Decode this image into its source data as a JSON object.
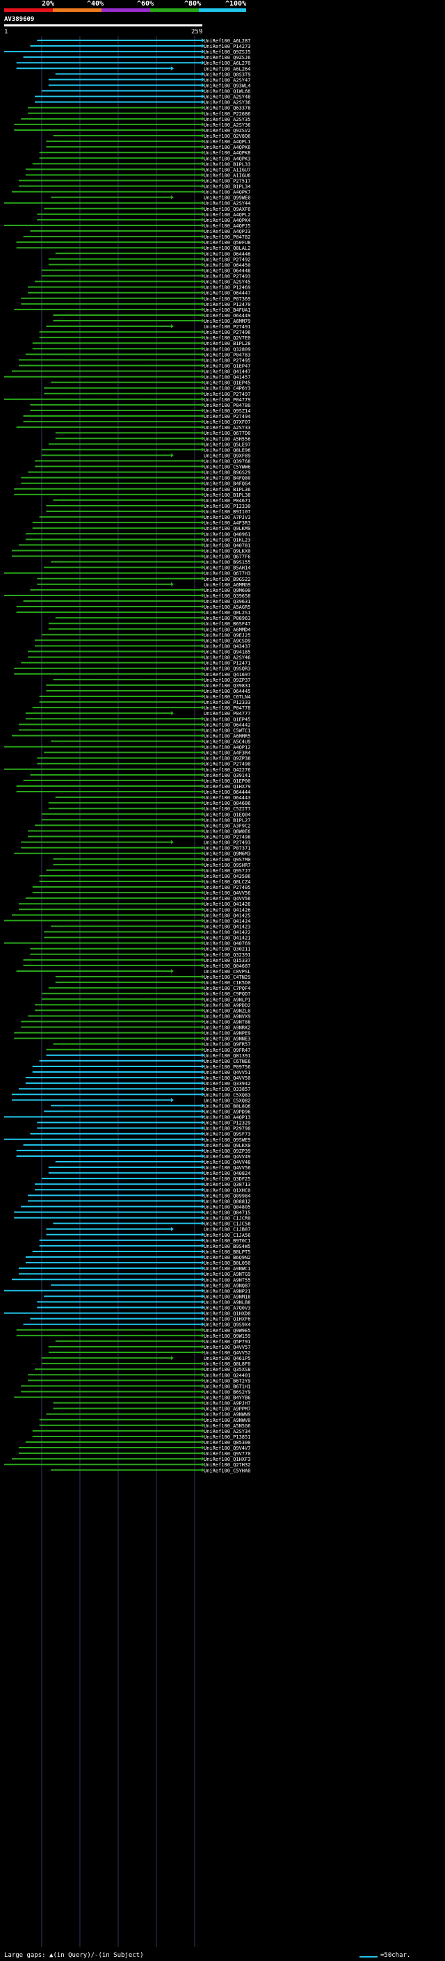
{
  "header": {
    "percent_labels": [
      "20%",
      "^40%",
      "^60%",
      "^80%",
      "^100%"
    ],
    "band_colors": [
      "#e8141c",
      "#f07a1c",
      "#9a2fd0",
      "#2aa81a",
      "#22c8ee"
    ],
    "query_name": "AV389609"
  },
  "chart_data": {
    "type": "alignment-map",
    "title": "AV389609",
    "query_start": 1,
    "query_end": 259,
    "hit_prefix": "UniRef100_",
    "color_scale": [
      {
        "min": 0,
        "max": 20,
        "color": "#e8141c"
      },
      {
        "min": 20,
        "max": 40,
        "color": "#f07a1c"
      },
      {
        "min": 40,
        "max": 60,
        "color": "#9a2fd0"
      },
      {
        "min": 60,
        "max": 80,
        "color": "#2aa81a"
      },
      {
        "min": 80,
        "max": 100,
        "color": "#22c8ee"
      }
    ],
    "hits": [
      "A6L287",
      "P14273",
      "Q9ZSJ5",
      "Q9ZSJ6",
      "A6L270",
      "A6L264",
      "Q0S3T9",
      "A2SY47",
      "Q93WL4",
      "Q1WL66",
      "A2SY48",
      "A2SY36",
      "Q63378",
      "P22686",
      "A2SY35",
      "A2SY36",
      "Q9ZSV2",
      "Q2V8Q6",
      "A4QPL1",
      "A4QPK6",
      "A4QPK8",
      "A4QPK3",
      "B1PL33",
      "A1IGU7",
      "A1IGU6",
      "P27517",
      "B1PL34",
      "A4QPK7",
      "Q99WE0",
      "A2SY44",
      "Q9AXF6",
      "A4QPL2",
      "A4QPK4",
      "A4QPJ5",
      "A4QPJ3",
      "P04782",
      "Q50FU8",
      "Q8LAL2",
      "O64446",
      "P27492",
      "O64450",
      "O64448",
      "P27493",
      "A2SY45",
      "P12469",
      "O64447",
      "P07369",
      "P12470",
      "B4FUA1",
      "O64449",
      "A6MM79",
      "P27491",
      "P27496",
      "Q2V7E0",
      "B1PL28",
      "Q32809",
      "P04783",
      "P27495",
      "Q1EP47",
      "Q41447",
      "Q41457",
      "Q1EP45",
      "C4P6Y3",
      "P27497",
      "P04779",
      "P04780",
      "Q9SZ14",
      "P27494",
      "Q7XF07",
      "A2SY33",
      "Q677D0",
      "A5H556",
      "Q5LE97",
      "Q8LE96",
      "Q9XF89",
      "Q39768",
      "C5YWW6",
      "B9GS29",
      "B4FQ80",
      "B4FQG4",
      "B1PL36",
      "B1PL38",
      "P04671",
      "P12330",
      "B9I107",
      "A7PJV3",
      "A4F3R3",
      "Q9LKM9",
      "Q40961",
      "Q1KL23",
      "Q40781",
      "Q9LKX0",
      "Q677F6",
      "B9S155",
      "B5AH14",
      "Q677H3",
      "B9GS22",
      "A6MMG9",
      "Q9M600",
      "Q39658",
      "Q39631",
      "A5AGR5",
      "Q0L2S1",
      "P08963",
      "B6SF47",
      "A6MMD4",
      "Q9EJ25",
      "A9CSD9",
      "Q43437",
      "Q94185",
      "A2SY46",
      "P12471",
      "Q9SQR3",
      "Q41697",
      "Q9ZP37",
      "Q39831",
      "O64445",
      "C6TLN4",
      "P12333",
      "P04778",
      "P04777",
      "Q1EP45",
      "O64442",
      "C5WTC1",
      "A6MMR5",
      "A5C4U9",
      "A4QP12",
      "A4F3R4",
      "Q9ZP38",
      "P27490",
      "Q42276",
      "Q39141",
      "Q1EP00",
      "Q1HX79",
      "O64444",
      "O64443",
      "Q04686",
      "C5ZIT7",
      "Q1EQ04",
      "B1PL27",
      "A3F9C2",
      "Q8W0E6",
      "P27498",
      "P27493",
      "P07371",
      "Q9M6M3",
      "Q9S7M0",
      "Q9SHR7",
      "Q9S7J7",
      "Q43586",
      "Q8LCZ4",
      "P27405",
      "Q4VV56",
      "Q4VV56",
      "Q41426",
      "Q41426",
      "Q41425",
      "Q41424",
      "Q41423",
      "Q41422",
      "Q41421",
      "Q40769",
      "Q30211",
      "Q32391",
      "Q15337",
      "Q04687",
      "C0VPSL",
      "C4TN29",
      "C1K5D0",
      "C7PQF4",
      "C9PQD7",
      "A9NLP1",
      "A9PDD2",
      "A9NZL0",
      "A9NVX9",
      "A9NT88",
      "A9NRK2",
      "A9NPE9",
      "A9NNE3",
      "Q9FR57",
      "Q9FR47",
      "Q81391",
      "C6TNE6",
      "P09756",
      "Q4VV51",
      "Q4VV50",
      "Q33942",
      "Q33857",
      "C5XQ83",
      "C5XQ82",
      "B8L8Q6",
      "A9PD96",
      "A4QP13",
      "P12329",
      "P29790",
      "Q9SF73",
      "Q9SWE9",
      "Q9LKX0",
      "Q9ZP39",
      "Q4VV49",
      "Q4VV48",
      "Q4VV56",
      "Q40824",
      "Q3DF25",
      "Q38713",
      "Q1XHC0",
      "Q09984",
      "Q08812",
      "Q04805",
      "Q04715",
      "C1JCR0",
      "C1JC58",
      "C1JB87",
      "C1JA56",
      "B9T0C1",
      "B9S4W5",
      "B8LPT5",
      "B6Q9N2",
      "B0L050",
      "A9NWC1",
      "A9NTG9",
      "A9NT55",
      "A9NQ87",
      "A9NP21",
      "A9NM18",
      "A9NLB8",
      "A7Q0V3",
      "Q1HXD0",
      "Q1HXF6",
      "Q9S9X4",
      "Q9W9E5",
      "Q9W159",
      "Q5P791",
      "Q4VV57",
      "Q4VV52",
      "Q461P5",
      "Q8L8F0",
      "Q35XS8",
      "Q24401",
      "B6T2Y9",
      "B6T1H1",
      "B6S2Y9",
      "B4YYB6",
      "A9PJH7",
      "A9PPM7",
      "A9NWN9",
      "A9NWV0",
      "A5N5G6",
      "A2SY34",
      "P13851",
      "Q85300",
      "Q9V4V7",
      "Q9V770",
      "Q1HXF3",
      "Q27H32",
      "C5YHA0"
    ]
  },
  "footer": {
    "large_gaps_label": "Large gaps:",
    "gap_legend": "▲(in Query)/-(in Subject)",
    "scale_label": "=50char."
  }
}
